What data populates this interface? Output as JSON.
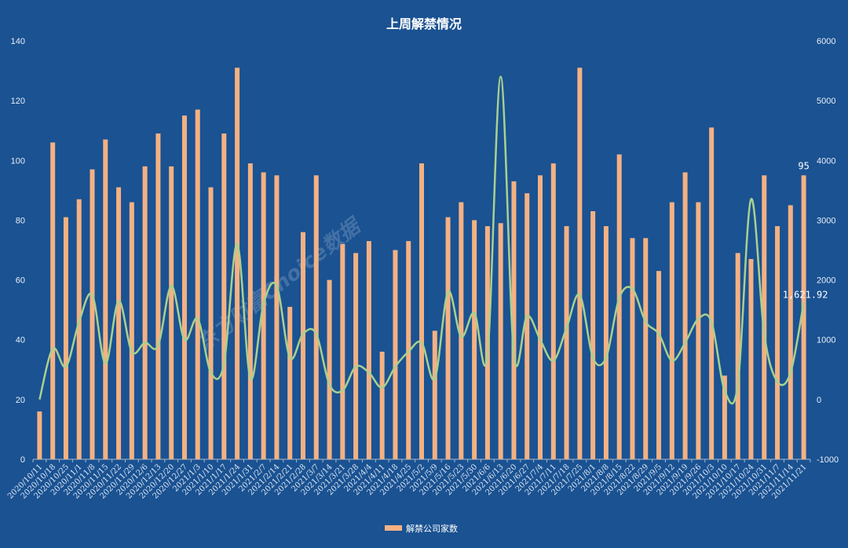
{
  "chart_data": {
    "type": "bar+line",
    "title": "上周解禁情况",
    "watermark": "东方财富Choice数据",
    "categories": [
      "2020/10/11",
      "2020/10/18",
      "2020/10/25",
      "2020/11/1",
      "2020/11/8",
      "2020/11/15",
      "2020/11/22",
      "2020/11/29",
      "2020/12/6",
      "2020/12/13",
      "2020/12/20",
      "2020/12/27",
      "2021/1/3",
      "2021/1/10",
      "2021/1/17",
      "2021/1/24",
      "2021/1/31",
      "2021/2/7",
      "2021/2/14",
      "2021/2/21",
      "2021/2/28",
      "2021/3/7",
      "2021/3/14",
      "2021/3/21",
      "2021/3/28",
      "2021/4/4",
      "2021/4/11",
      "2021/4/18",
      "2021/4/25",
      "2021/5/2",
      "2021/5/9",
      "2021/5/16",
      "2021/5/23",
      "2021/5/30",
      "2021/6/6",
      "2021/6/13",
      "2021/6/20",
      "2021/6/27",
      "2021/7/4",
      "2021/7/11",
      "2021/7/18",
      "2021/7/25",
      "2021/8/1",
      "2021/8/8",
      "2021/8/15",
      "2021/8/22",
      "2021/8/29",
      "2021/9/5",
      "2021/9/12",
      "2021/9/19",
      "2021/9/26",
      "2021/10/3",
      "2021/10/10",
      "2021/10/17",
      "2021/10/24",
      "2021/10/31",
      "2021/11/7",
      "2021/11/14",
      "2021/11/21"
    ],
    "series": [
      {
        "name": "解禁公司家数",
        "type": "bar",
        "axis": "left",
        "color": "#f4b183",
        "values": [
          16,
          106,
          81,
          87,
          97,
          107,
          91,
          86,
          98,
          109,
          98,
          115,
          117,
          91,
          109,
          131,
          99,
          96,
          95,
          51,
          76,
          95,
          60,
          72,
          69,
          73,
          36,
          70,
          73,
          99,
          43,
          81,
          86,
          80,
          78,
          79,
          93,
          89,
          95,
          99,
          78,
          131,
          83,
          78,
          102,
          74,
          74,
          63,
          86,
          96,
          86,
          111,
          28,
          69,
          67,
          95,
          78,
          85,
          95
        ],
        "last_label": "95"
      },
      {
        "type": "line",
        "axis": "right",
        "color": "#a9d18e",
        "smooth": true,
        "values": [
          0,
          850,
          550,
          1300,
          1750,
          600,
          1650,
          800,
          950,
          900,
          1900,
          1000,
          1350,
          450,
          600,
          2600,
          350,
          1600,
          1900,
          700,
          1100,
          1100,
          250,
          150,
          550,
          450,
          200,
          550,
          800,
          950,
          350,
          1800,
          1050,
          1450,
          750,
          5400,
          750,
          1400,
          1000,
          650,
          1200,
          1750,
          700,
          700,
          1700,
          1850,
          1300,
          1100,
          650,
          950,
          1350,
          1300,
          150,
          250,
          3350,
          1100,
          300,
          450,
          1621.92
        ],
        "last_label": "1,621.92"
      }
    ],
    "left_axis": {
      "min": 0,
      "max": 140,
      "ticks": [
        "0",
        "20",
        "40",
        "60",
        "80",
        "100",
        "120",
        "140"
      ]
    },
    "right_axis": {
      "min": -1000,
      "max": 6000,
      "ticks": [
        "-1000",
        "0",
        "1000",
        "2000",
        "3000",
        "4000",
        "5000",
        "6000"
      ]
    },
    "grid": false,
    "legend_position": "bottom"
  }
}
